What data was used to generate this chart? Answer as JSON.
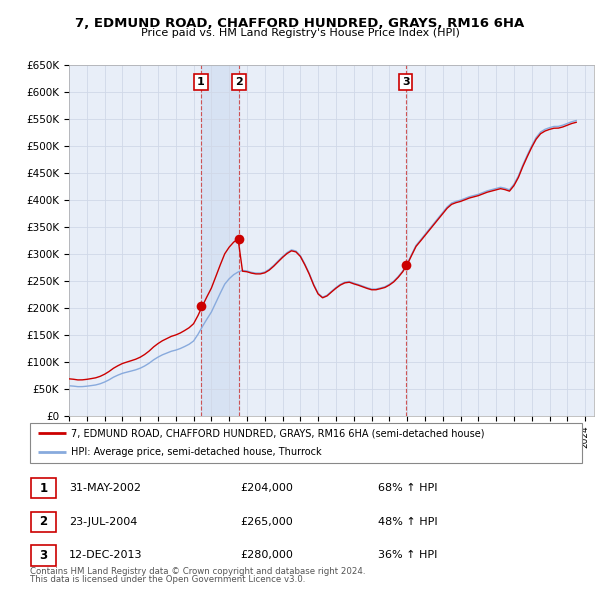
{
  "title": "7, EDMUND ROAD, CHAFFORD HUNDRED, GRAYS, RM16 6HA",
  "subtitle": "Price paid vs. HM Land Registry's House Price Index (HPI)",
  "ylim": [
    0,
    650000
  ],
  "yticks": [
    0,
    50000,
    100000,
    150000,
    200000,
    250000,
    300000,
    350000,
    400000,
    450000,
    500000,
    550000,
    600000,
    650000
  ],
  "ytick_labels": [
    "£0",
    "£50K",
    "£100K",
    "£150K",
    "£200K",
    "£250K",
    "£300K",
    "£350K",
    "£400K",
    "£450K",
    "£500K",
    "£550K",
    "£600K",
    "£650K"
  ],
  "background_color": "#ffffff",
  "grid_color": "#d0d8e8",
  "plot_bg_color": "#e8eef8",
  "sale_color": "#cc0000",
  "hpi_color": "#88aadd",
  "sale_label": "7, EDMUND ROAD, CHAFFORD HUNDRED, GRAYS, RM16 6HA (semi-detached house)",
  "hpi_label": "HPI: Average price, semi-detached house, Thurrock",
  "transactions": [
    {
      "num": 1,
      "date": "31-MAY-2002",
      "price": 204000,
      "pct": "68%",
      "year_x": 2002.42
    },
    {
      "num": 2,
      "date": "23-JUL-2004",
      "price": 265000,
      "pct": "48%",
      "year_x": 2004.55
    },
    {
      "num": 3,
      "date": "12-DEC-2013",
      "price": 280000,
      "pct": "36%",
      "year_x": 2013.92
    }
  ],
  "footer1": "Contains HM Land Registry data © Crown copyright and database right 2024.",
  "footer2": "This data is licensed under the Open Government Licence v3.0.",
  "hpi_quarterly": [
    55890,
    55230,
    54230,
    54320,
    55100,
    56200,
    57400,
    59600,
    62800,
    66900,
    71800,
    75600,
    78900,
    81100,
    83200,
    85400,
    88400,
    92500,
    97600,
    103800,
    108900,
    113200,
    116500,
    119800,
    121900,
    124800,
    128600,
    132800,
    138800,
    151200,
    165800,
    179400,
    192400,
    209800,
    227400,
    244000,
    254000,
    261500,
    266500,
    269500,
    268500,
    266000,
    264500,
    264500,
    266500,
    271500,
    278700,
    287000,
    295200,
    302400,
    307500,
    305500,
    297000,
    281500,
    264000,
    243500,
    227000,
    220000,
    223500,
    230800,
    237800,
    243800,
    247800,
    249000,
    246000,
    243500,
    240500,
    237500,
    235000,
    235000,
    237000,
    239200,
    243700,
    249700,
    258200,
    268400,
    281700,
    299000,
    315800,
    325800,
    336000,
    346200,
    356400,
    366600,
    376800,
    387000,
    394200,
    397400,
    399600,
    402800,
    406000,
    408200,
    410400,
    413600,
    416800,
    419000,
    421200,
    423400,
    421600,
    418800,
    429000,
    444200,
    464600,
    483000,
    500400,
    515600,
    525800,
    530800,
    533800,
    536000,
    536200,
    538400,
    541600,
    544800,
    547000
  ],
  "xmin": 1995.0,
  "xmax": 2024.5,
  "quarter_start_year": 1995.0,
  "quarter_step": 0.25
}
